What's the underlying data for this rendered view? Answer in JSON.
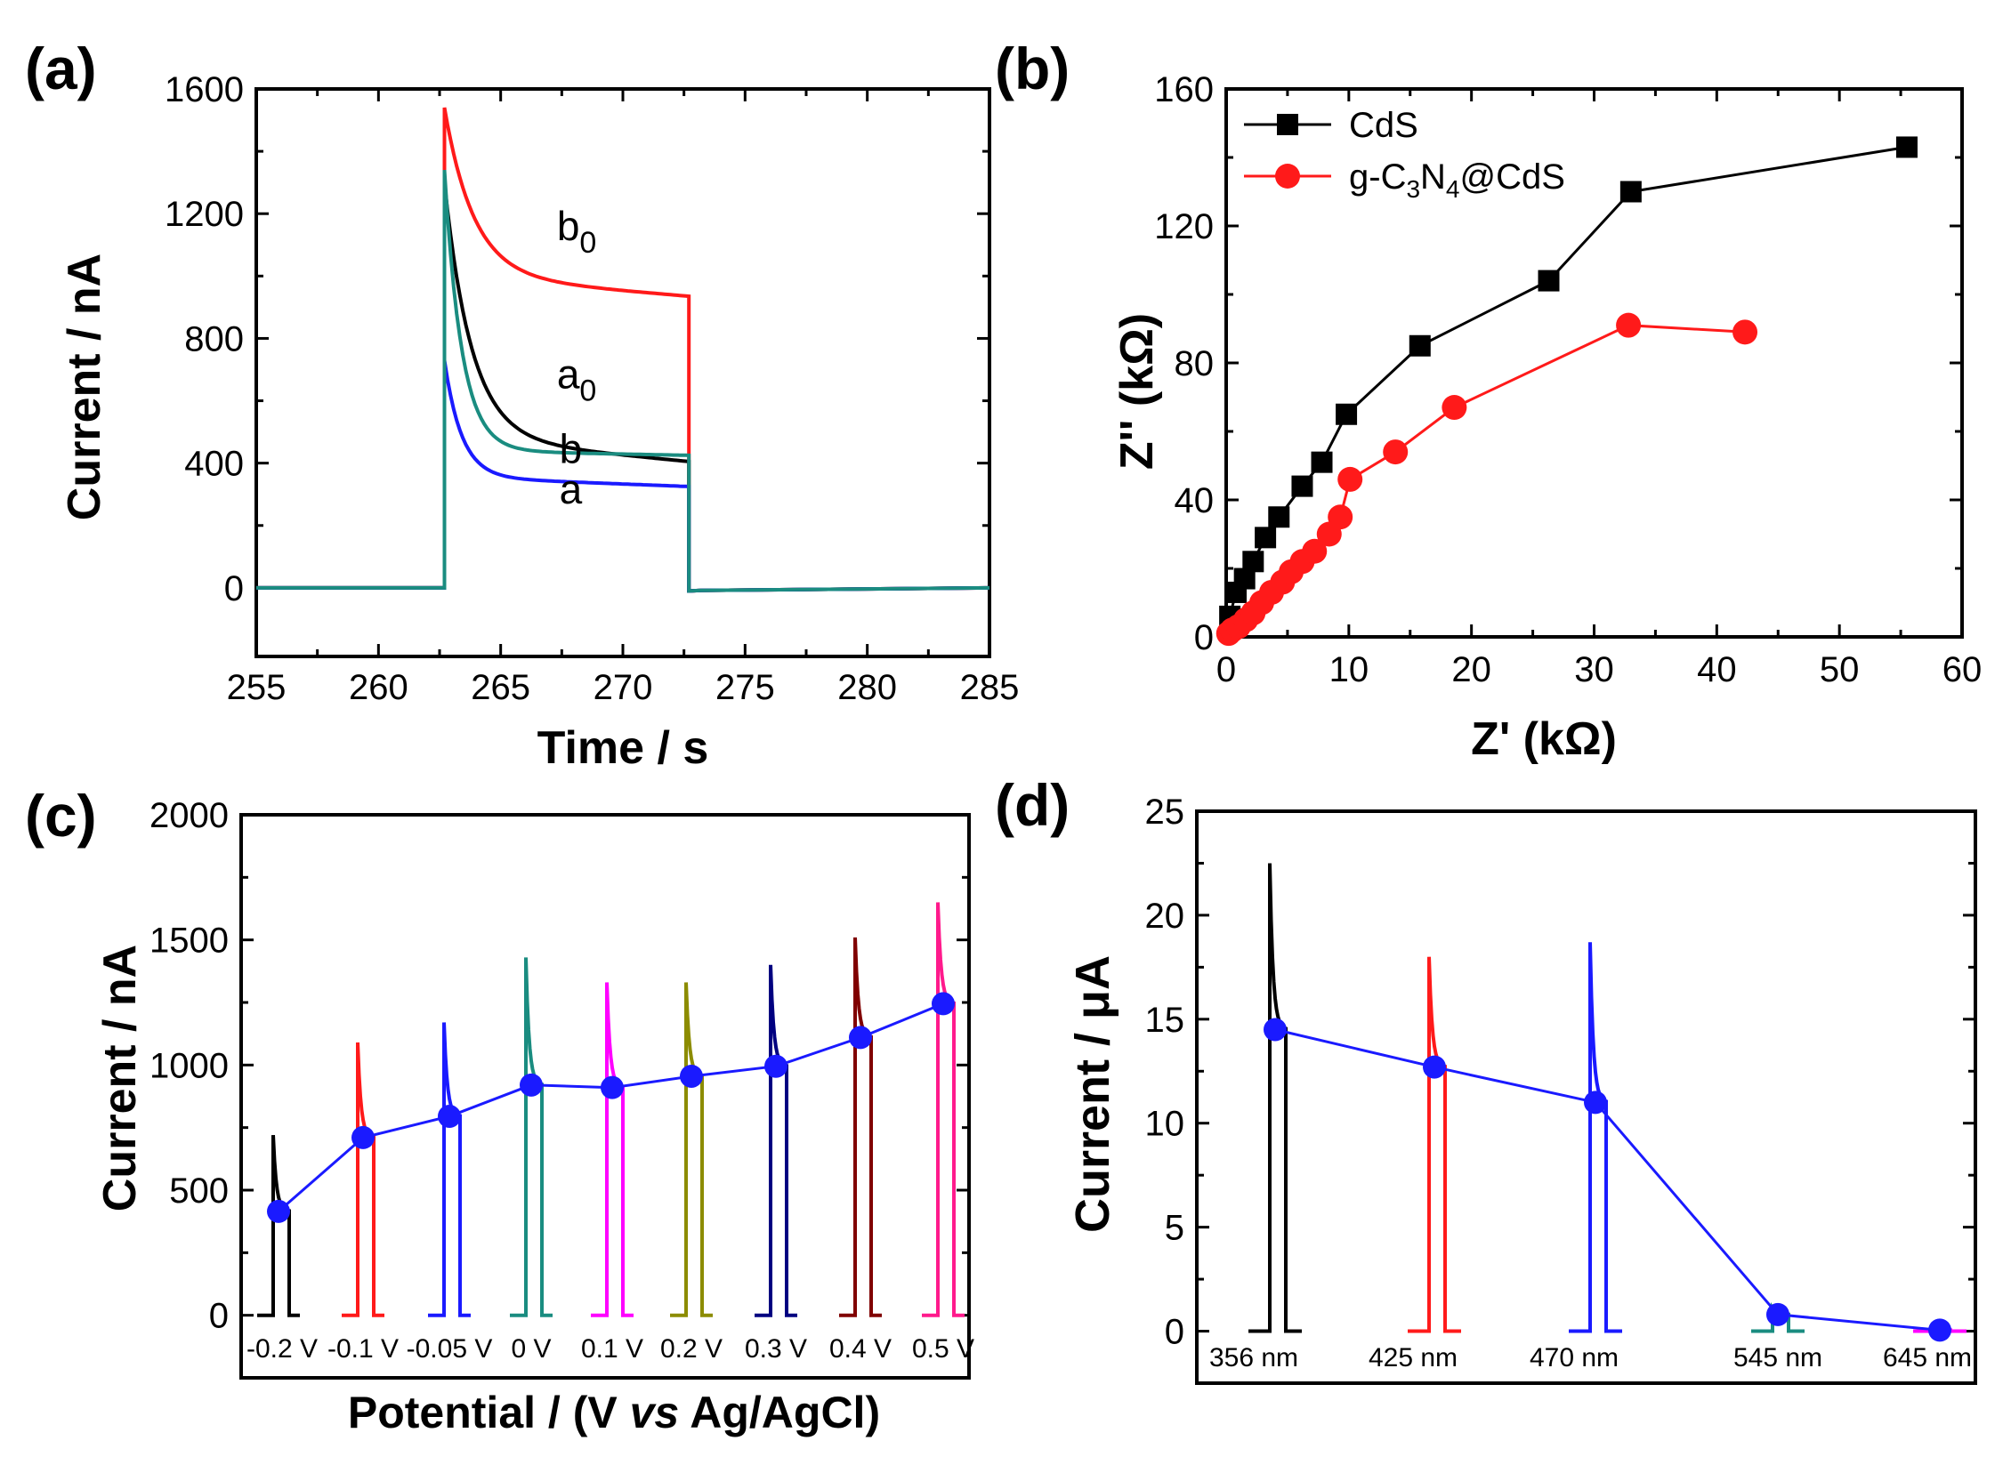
{
  "chart_data": [
    {
      "panel": "(a)",
      "type": "line",
      "xlabel": "Time / s",
      "ylabel": "Current / nA",
      "xlim": [
        255,
        285
      ],
      "ylim": [
        0,
        1600
      ],
      "xticks": [
        "255",
        "260",
        "265",
        "270",
        "275",
        "280",
        "285"
      ],
      "yticks": [
        "0",
        "400",
        "800",
        "1200",
        "1600"
      ],
      "x_on": 262.7,
      "x_off": 272.7,
      "series": [
        {
          "name": "b",
          "sub": "0",
          "label_x": 267.3,
          "label_y": 1115,
          "color": "#ff1a1a",
          "peak": 1540,
          "plateau": 1000,
          "end": 935,
          "tau": 1.2
        },
        {
          "name": "a",
          "sub": "0",
          "label_x": 267.3,
          "label_y": 640,
          "color": "#000000",
          "peak": 1300,
          "plateau": 480,
          "end": 405,
          "tau": 1.1
        },
        {
          "name": "b",
          "sub": "",
          "label_x": 267.4,
          "label_y": 400,
          "color": "#1a8c80",
          "peak": 1340,
          "plateau": 440,
          "end": 425,
          "tau": 0.7
        },
        {
          "name": "a",
          "sub": "",
          "label_x": 267.4,
          "label_y": 270,
          "color": "#1a1aff",
          "peak": 730,
          "plateau": 355,
          "end": 325,
          "tau": 0.7
        }
      ]
    },
    {
      "panel": "(b)",
      "type": "line",
      "xlabel": "Z' (kΩ)",
      "ylabel": "Z'' (kΩ)",
      "xlim": [
        0,
        60
      ],
      "ylim": [
        0,
        160
      ],
      "xticks": [
        "0",
        "10",
        "20",
        "30",
        "40",
        "50",
        "60"
      ],
      "yticks": [
        "0",
        "40",
        "80",
        "120",
        "160"
      ],
      "legend_position": "top-left",
      "series": [
        {
          "name": "CdS",
          "color": "#000000",
          "marker": "square",
          "x": [
            0.3,
            0.8,
            1.5,
            2.2,
            3.2,
            4.3,
            6.2,
            7.8,
            9.8,
            15.8,
            26.3,
            33.0,
            55.5
          ],
          "y": [
            6,
            13,
            17,
            22,
            29,
            35,
            44,
            51,
            65,
            85,
            104,
            130,
            143
          ]
        },
        {
          "name": "g-C3N4@CdS",
          "name_parts": [
            "g-C",
            "3",
            "N",
            "4",
            "@CdS"
          ],
          "color": "#ff1a1a",
          "marker": "circle",
          "x": [
            0.2,
            0.5,
            1.0,
            1.6,
            2.2,
            2.9,
            3.7,
            4.6,
            5.3,
            6.2,
            7.2,
            8.4,
            9.3,
            10.1,
            13.8,
            18.6,
            32.8,
            42.3
          ],
          "y": [
            1,
            2,
            3,
            5,
            7,
            10,
            13,
            16,
            19,
            22,
            25,
            30,
            35,
            46,
            54,
            67,
            91,
            89
          ]
        }
      ]
    },
    {
      "panel": "(c)",
      "type": "line",
      "xlabel_parts": [
        "Potential / (V ",
        "vs",
        " Ag/AgCl)"
      ],
      "ylabel": "Current / nA",
      "ylim": [
        -250,
        2000
      ],
      "yticks": [
        "0",
        "500",
        "1000",
        "1500",
        "2000"
      ],
      "categories": [
        "-0.2 V",
        "-0.1 V",
        "-0.05 V",
        "0 V",
        "0.1 V",
        "0.2 V",
        "0.3 V",
        "0.4 V",
        "0.5 V"
      ],
      "colors": [
        "#000000",
        "#ff1a1a",
        "#1a1aff",
        "#1a8c80",
        "#ff00ff",
        "#8c8c00",
        "#000080",
        "#800000",
        "#ff1a8c"
      ],
      "peaks": [
        720,
        1090,
        1170,
        1430,
        1330,
        1330,
        1400,
        1510,
        1650
      ],
      "steady_values": [
        415,
        710,
        795,
        920,
        910,
        955,
        995,
        1110,
        1245
      ],
      "series_color": "#1a1aff"
    },
    {
      "panel": "(d)",
      "type": "line",
      "ylabel": "Current / μA",
      "ylim": [
        -2.5,
        25
      ],
      "yticks": [
        "0",
        "5",
        "10",
        "15",
        "20",
        "25"
      ],
      "categories": [
        "356 nm",
        "425 nm",
        "470 nm",
        "545 nm",
        "645 nm"
      ],
      "colors": [
        "#000000",
        "#ff1a1a",
        "#1a1aff",
        "#1a8c80",
        "#ff00ff"
      ],
      "peaks": [
        22.5,
        18.0,
        18.7,
        1.1,
        0.15
      ],
      "steady_values": [
        14.5,
        12.7,
        11.0,
        0.8,
        0.05
      ],
      "series_color": "#1a1aff"
    }
  ]
}
